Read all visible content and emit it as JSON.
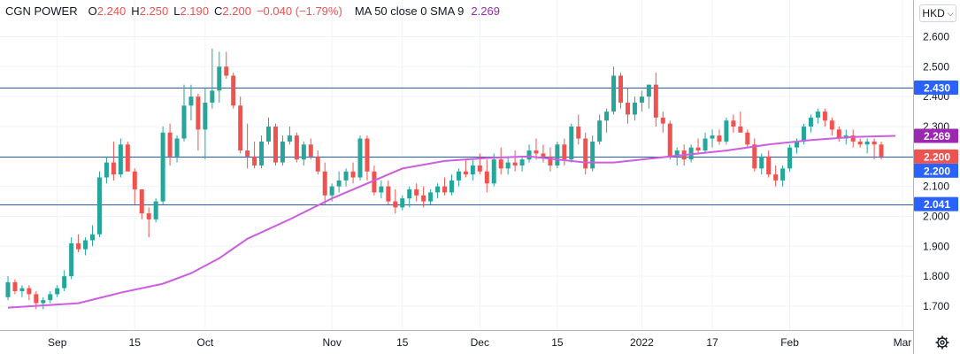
{
  "legend": {
    "symbol": "CGN POWER",
    "o_label": "O",
    "o_value": "2.240",
    "h_label": "H",
    "h_value": "2.250",
    "l_label": "L",
    "l_value": "2.190",
    "c_label": "C",
    "c_value": "2.200",
    "change": "−0.040 (−1.79%)",
    "ma_label": "MA 50 close 0 SMA 9",
    "ma_value": "2.269"
  },
  "currency_button": {
    "label": "HKD"
  },
  "icons": {
    "currency_chevron": "chevron-down-icon",
    "settings": "gear-icon"
  },
  "colors": {
    "up": "#26a69a",
    "down": "#ef5350",
    "ma": "#cc5ee0",
    "hline": "#2a5caa",
    "ma_badge": "#9c27b0",
    "price_badge": "#ef5350",
    "level_badge": "#2962ff"
  },
  "chart_data": {
    "type": "candlestick",
    "ylim": [
      1.62,
      2.64
    ],
    "yticks": [
      "1.700",
      "1.800",
      "1.900",
      "2.000",
      "2.100",
      "2.200",
      "2.300",
      "2.400",
      "2.500",
      "2.600"
    ],
    "xticks": [
      {
        "label": "Sep",
        "i": 7
      },
      {
        "label": "15",
        "i": 18
      },
      {
        "label": "Oct",
        "i": 28
      },
      {
        "label": "Nov",
        "i": 46
      },
      {
        "label": "15",
        "i": 56
      },
      {
        "label": "Dec",
        "i": 67
      },
      {
        "label": "15",
        "i": 78
      },
      {
        "label": "2022",
        "i": 90
      },
      {
        "label": "17",
        "i": 100
      },
      {
        "label": "Feb",
        "i": 111
      },
      {
        "label": "Mar",
        "i": 127
      }
    ],
    "horizontal_lines": [
      {
        "value": 2.43,
        "label": "2.430"
      },
      {
        "value": 2.2,
        "label": "2.200"
      },
      {
        "value": 2.041,
        "label": "2.041"
      }
    ],
    "badges": [
      {
        "value": 2.269,
        "label": "2.269",
        "kind": "ma"
      },
      {
        "value": 2.2,
        "label": "2.200",
        "kind": "price"
      }
    ],
    "ohlc": [
      [
        1.73,
        1.8,
        1.72,
        1.78
      ],
      [
        1.78,
        1.79,
        1.74,
        1.75
      ],
      [
        1.75,
        1.77,
        1.73,
        1.76
      ],
      [
        1.76,
        1.77,
        1.72,
        1.74
      ],
      [
        1.74,
        1.75,
        1.69,
        1.71
      ],
      [
        1.71,
        1.73,
        1.69,
        1.72
      ],
      [
        1.72,
        1.75,
        1.71,
        1.74
      ],
      [
        1.74,
        1.77,
        1.73,
        1.76
      ],
      [
        1.76,
        1.82,
        1.75,
        1.8
      ],
      [
        1.8,
        1.93,
        1.79,
        1.91
      ],
      [
        1.91,
        1.94,
        1.88,
        1.89
      ],
      [
        1.89,
        1.93,
        1.87,
        1.92
      ],
      [
        1.92,
        1.97,
        1.9,
        1.94
      ],
      [
        1.94,
        2.15,
        1.93,
        2.13
      ],
      [
        2.13,
        2.2,
        2.11,
        2.18
      ],
      [
        2.18,
        2.25,
        2.12,
        2.14
      ],
      [
        2.14,
        2.26,
        2.13,
        2.24
      ],
      [
        2.24,
        2.25,
        2.15,
        2.15
      ],
      [
        2.15,
        2.16,
        2.04,
        2.09
      ],
      [
        2.09,
        2.09,
        1.99,
        2.01
      ],
      [
        2.01,
        2.03,
        1.93,
        1.99
      ],
      [
        1.99,
        2.06,
        1.98,
        2.05
      ],
      [
        2.05,
        2.3,
        2.04,
        2.28
      ],
      [
        2.28,
        2.31,
        2.17,
        2.2
      ],
      [
        2.2,
        2.27,
        2.18,
        2.26
      ],
      [
        2.26,
        2.44,
        2.25,
        2.37
      ],
      [
        2.37,
        2.44,
        2.32,
        2.4
      ],
      [
        2.4,
        2.41,
        2.22,
        2.29
      ],
      [
        2.29,
        2.43,
        2.19,
        2.38
      ],
      [
        2.38,
        2.56,
        2.36,
        2.42
      ],
      [
        2.42,
        2.55,
        2.38,
        2.5
      ],
      [
        2.5,
        2.55,
        2.46,
        2.47
      ],
      [
        2.47,
        2.48,
        2.36,
        2.37
      ],
      [
        2.37,
        2.4,
        2.21,
        2.22
      ],
      [
        2.22,
        2.31,
        2.16,
        2.2
      ],
      [
        2.2,
        2.25,
        2.16,
        2.17
      ],
      [
        2.17,
        2.27,
        2.16,
        2.25
      ],
      [
        2.25,
        2.33,
        2.24,
        2.3
      ],
      [
        2.3,
        2.31,
        2.17,
        2.18
      ],
      [
        2.18,
        2.27,
        2.17,
        2.25
      ],
      [
        2.25,
        2.3,
        2.24,
        2.27
      ],
      [
        2.27,
        2.28,
        2.18,
        2.19
      ],
      [
        2.19,
        2.25,
        2.17,
        2.24
      ],
      [
        2.24,
        2.26,
        2.19,
        2.2
      ],
      [
        2.2,
        2.22,
        2.14,
        2.15
      ],
      [
        2.15,
        2.18,
        2.04,
        2.07
      ],
      [
        2.07,
        2.11,
        2.05,
        2.1
      ],
      [
        2.1,
        2.15,
        2.08,
        2.12
      ],
      [
        2.12,
        2.16,
        2.1,
        2.15
      ],
      [
        2.15,
        2.18,
        2.11,
        2.13
      ],
      [
        2.13,
        2.27,
        2.12,
        2.26
      ],
      [
        2.26,
        2.27,
        2.12,
        2.15
      ],
      [
        2.15,
        2.17,
        2.07,
        2.08
      ],
      [
        2.08,
        2.12,
        2.06,
        2.1
      ],
      [
        2.1,
        2.12,
        2.04,
        2.05
      ],
      [
        2.05,
        2.09,
        2.01,
        2.03
      ],
      [
        2.03,
        2.07,
        2.02,
        2.06
      ],
      [
        2.06,
        2.1,
        2.03,
        2.09
      ],
      [
        2.09,
        2.11,
        2.05,
        2.07
      ],
      [
        2.07,
        2.1,
        2.03,
        2.05
      ],
      [
        2.05,
        2.09,
        2.04,
        2.08
      ],
      [
        2.08,
        2.11,
        2.06,
        2.1
      ],
      [
        2.1,
        2.13,
        2.07,
        2.08
      ],
      [
        2.08,
        2.14,
        2.07,
        2.12
      ],
      [
        2.12,
        2.16,
        2.1,
        2.15
      ],
      [
        2.15,
        2.19,
        2.13,
        2.14
      ],
      [
        2.14,
        2.19,
        2.12,
        2.17
      ],
      [
        2.17,
        2.21,
        2.14,
        2.15
      ],
      [
        2.15,
        2.19,
        2.08,
        2.11
      ],
      [
        2.11,
        2.21,
        2.1,
        2.19
      ],
      [
        2.19,
        2.23,
        2.14,
        2.16
      ],
      [
        2.16,
        2.2,
        2.14,
        2.18
      ],
      [
        2.18,
        2.22,
        2.15,
        2.17
      ],
      [
        2.17,
        2.2,
        2.15,
        2.19
      ],
      [
        2.19,
        2.24,
        2.18,
        2.22
      ],
      [
        2.22,
        2.26,
        2.19,
        2.21
      ],
      [
        2.21,
        2.24,
        2.18,
        2.2
      ],
      [
        2.2,
        2.23,
        2.15,
        2.17
      ],
      [
        2.17,
        2.25,
        2.16,
        2.24
      ],
      [
        2.24,
        2.26,
        2.17,
        2.19
      ],
      [
        2.19,
        2.31,
        2.18,
        2.3
      ],
      [
        2.3,
        2.34,
        2.24,
        2.26
      ],
      [
        2.26,
        2.28,
        2.14,
        2.16
      ],
      [
        2.16,
        2.27,
        2.15,
        2.25
      ],
      [
        2.25,
        2.34,
        2.24,
        2.32
      ],
      [
        2.32,
        2.36,
        2.28,
        2.35
      ],
      [
        2.35,
        2.5,
        2.34,
        2.47
      ],
      [
        2.47,
        2.48,
        2.36,
        2.38
      ],
      [
        2.38,
        2.43,
        2.31,
        2.34
      ],
      [
        2.34,
        2.4,
        2.32,
        2.38
      ],
      [
        2.38,
        2.42,
        2.35,
        2.4
      ],
      [
        2.4,
        2.44,
        2.36,
        2.44
      ],
      [
        2.44,
        2.48,
        2.3,
        2.33
      ],
      [
        2.33,
        2.35,
        2.28,
        2.31
      ],
      [
        2.31,
        2.32,
        2.19,
        2.2
      ],
      [
        2.2,
        2.23,
        2.17,
        2.22
      ],
      [
        2.22,
        2.24,
        2.17,
        2.19
      ],
      [
        2.19,
        2.24,
        2.18,
        2.23
      ],
      [
        2.23,
        2.26,
        2.21,
        2.22
      ],
      [
        2.22,
        2.28,
        2.21,
        2.26
      ],
      [
        2.26,
        2.29,
        2.23,
        2.27
      ],
      [
        2.27,
        2.29,
        2.24,
        2.25
      ],
      [
        2.25,
        2.33,
        2.24,
        2.32
      ],
      [
        2.32,
        2.34,
        2.28,
        2.3
      ],
      [
        2.3,
        2.35,
        2.29,
        2.28
      ],
      [
        2.28,
        2.29,
        2.23,
        2.24
      ],
      [
        2.24,
        2.26,
        2.15,
        2.16
      ],
      [
        2.16,
        2.21,
        2.14,
        2.2
      ],
      [
        2.2,
        2.22,
        2.13,
        2.14
      ],
      [
        2.14,
        2.17,
        2.1,
        2.12
      ],
      [
        2.12,
        2.17,
        2.1,
        2.16
      ],
      [
        2.16,
        2.24,
        2.15,
        2.23
      ],
      [
        2.23,
        2.26,
        2.21,
        2.25
      ],
      [
        2.25,
        2.31,
        2.24,
        2.3
      ],
      [
        2.3,
        2.34,
        2.28,
        2.33
      ],
      [
        2.33,
        2.36,
        2.31,
        2.35
      ],
      [
        2.35,
        2.36,
        2.3,
        2.32
      ],
      [
        2.32,
        2.33,
        2.27,
        2.29
      ],
      [
        2.29,
        2.3,
        2.25,
        2.26
      ],
      [
        2.26,
        2.29,
        2.24,
        2.27
      ],
      [
        2.27,
        2.29,
        2.23,
        2.25
      ],
      [
        2.25,
        2.26,
        2.23,
        2.24
      ],
      [
        2.24,
        2.26,
        2.21,
        2.25
      ],
      [
        2.25,
        2.26,
        2.19,
        2.24
      ],
      [
        2.24,
        2.25,
        2.19,
        2.2
      ]
    ],
    "ma_points": [
      [
        0,
        1.695
      ],
      [
        10,
        1.71
      ],
      [
        16,
        1.745
      ],
      [
        22,
        1.775
      ],
      [
        26,
        1.81
      ],
      [
        30,
        1.86
      ],
      [
        34,
        1.925
      ],
      [
        40,
        1.99
      ],
      [
        46,
        2.06
      ],
      [
        52,
        2.12
      ],
      [
        56,
        2.16
      ],
      [
        62,
        2.185
      ],
      [
        68,
        2.195
      ],
      [
        74,
        2.2
      ],
      [
        78,
        2.19
      ],
      [
        82,
        2.18
      ],
      [
        86,
        2.18
      ],
      [
        90,
        2.19
      ],
      [
        96,
        2.205
      ],
      [
        102,
        2.22
      ],
      [
        108,
        2.24
      ],
      [
        114,
        2.255
      ],
      [
        120,
        2.265
      ],
      [
        126,
        2.269
      ]
    ]
  }
}
